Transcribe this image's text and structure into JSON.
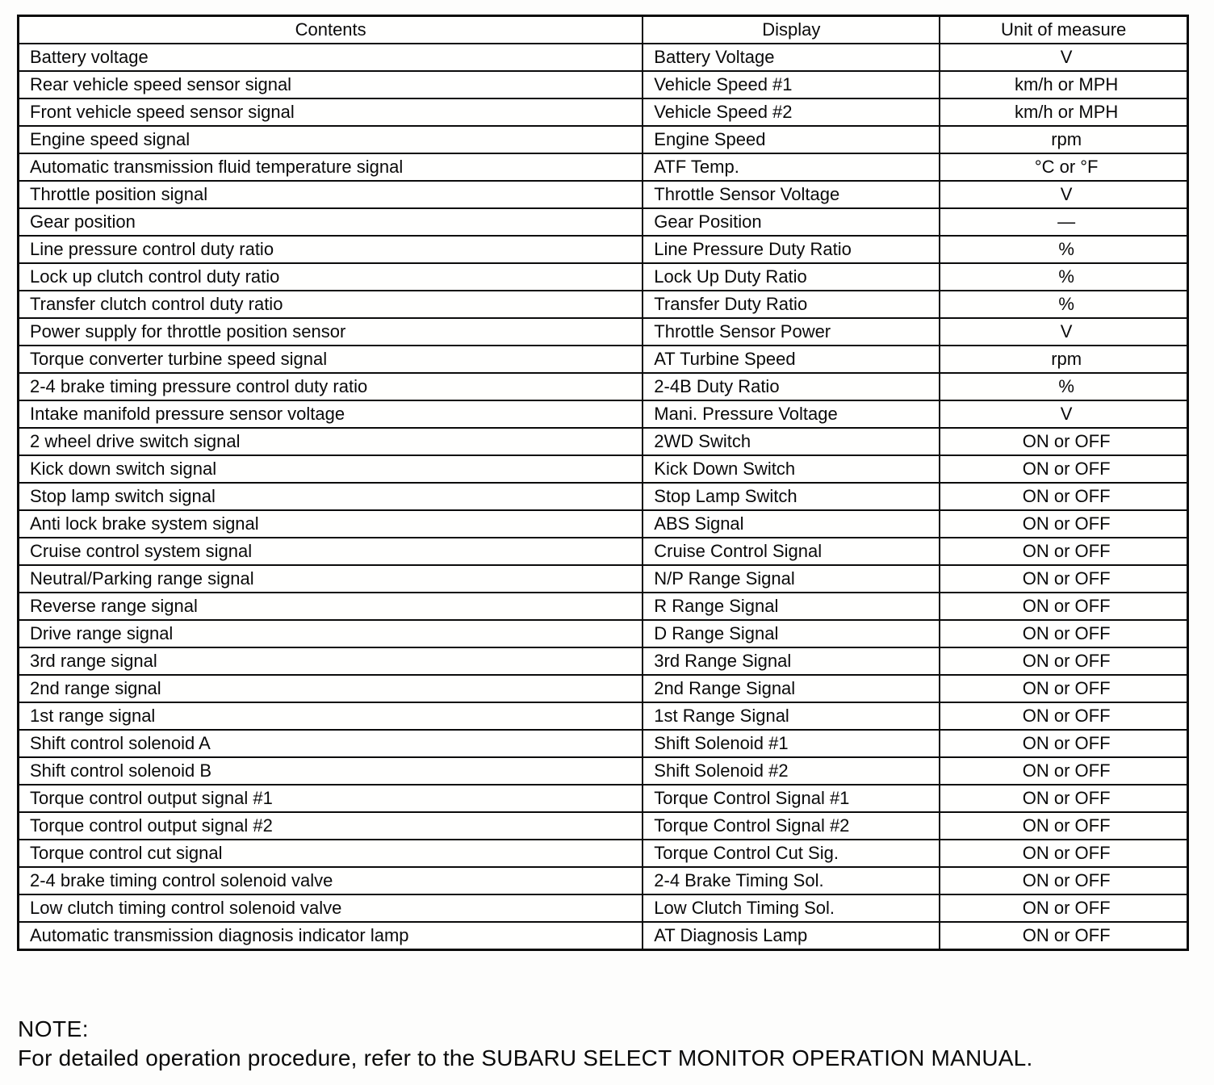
{
  "table": {
    "headers": [
      "Contents",
      "Display",
      "Unit of measure"
    ],
    "rows": [
      {
        "contents": "Battery voltage",
        "display": "Battery Voltage",
        "unit": "V"
      },
      {
        "contents": "Rear vehicle speed sensor signal",
        "display": "Vehicle Speed #1",
        "unit": "km/h or MPH"
      },
      {
        "contents": "Front vehicle speed sensor signal",
        "display": "Vehicle Speed #2",
        "unit": "km/h or MPH"
      },
      {
        "contents": "Engine speed signal",
        "display": "Engine Speed",
        "unit": "rpm"
      },
      {
        "contents": "Automatic transmission fluid temperature signal",
        "display": "ATF Temp.",
        "unit": "°C or °F"
      },
      {
        "contents": "Throttle position signal",
        "display": "Throttle Sensor Voltage",
        "unit": "V"
      },
      {
        "contents": "Gear position",
        "display": "Gear Position",
        "unit": "—"
      },
      {
        "contents": "Line pressure control duty ratio",
        "display": "Line Pressure Duty Ratio",
        "unit": "%"
      },
      {
        "contents": "Lock up clutch control duty ratio",
        "display": "Lock Up Duty Ratio",
        "unit": "%"
      },
      {
        "contents": "Transfer clutch control duty ratio",
        "display": "Transfer Duty Ratio",
        "unit": "%"
      },
      {
        "contents": "Power supply for throttle position sensor",
        "display": "Throttle Sensor Power",
        "unit": "V"
      },
      {
        "contents": "Torque converter turbine speed signal",
        "display": "AT Turbine Speed",
        "unit": "rpm"
      },
      {
        "contents": "2-4 brake timing pressure control duty ratio",
        "display": "2-4B Duty Ratio",
        "unit": "%"
      },
      {
        "contents": "Intake manifold pressure sensor voltage",
        "display": "Mani. Pressure Voltage",
        "unit": "V"
      },
      {
        "contents": "2 wheel drive switch signal",
        "display": "2WD Switch",
        "unit": "ON or OFF"
      },
      {
        "contents": "Kick down switch signal",
        "display": "Kick Down Switch",
        "unit": "ON or OFF"
      },
      {
        "contents": "Stop lamp switch signal",
        "display": "Stop Lamp Switch",
        "unit": "ON or OFF"
      },
      {
        "contents": "Anti lock brake system signal",
        "display": "ABS Signal",
        "unit": "ON or OFF"
      },
      {
        "contents": "Cruise control system signal",
        "display": "Cruise Control Signal",
        "unit": "ON or OFF"
      },
      {
        "contents": "Neutral/Parking range signal",
        "display": "N/P Range Signal",
        "unit": "ON or OFF"
      },
      {
        "contents": "Reverse range signal",
        "display": "R Range Signal",
        "unit": "ON or OFF"
      },
      {
        "contents": "Drive range signal",
        "display": "D Range Signal",
        "unit": "ON or OFF"
      },
      {
        "contents": "3rd range signal",
        "display": "3rd Range Signal",
        "unit": "ON or OFF"
      },
      {
        "contents": "2nd range signal",
        "display": "2nd Range Signal",
        "unit": "ON or OFF"
      },
      {
        "contents": "1st range signal",
        "display": "1st Range Signal",
        "unit": "ON or OFF"
      },
      {
        "contents": "Shift control solenoid A",
        "display": "Shift Solenoid #1",
        "unit": "ON or OFF"
      },
      {
        "contents": "Shift control solenoid B",
        "display": "Shift Solenoid #2",
        "unit": "ON or OFF"
      },
      {
        "contents": "Torque control output signal #1",
        "display": "Torque Control Signal #1",
        "unit": "ON or OFF"
      },
      {
        "contents": "Torque control output signal #2",
        "display": "Torque Control Signal #2",
        "unit": "ON or OFF"
      },
      {
        "contents": "Torque control cut signal",
        "display": "Torque Control Cut Sig.",
        "unit": "ON or OFF"
      },
      {
        "contents": "2-4 brake timing control solenoid valve",
        "display": "2-4 Brake Timing Sol.",
        "unit": "ON or OFF"
      },
      {
        "contents": "Low clutch timing control solenoid valve",
        "display": "Low Clutch Timing Sol.",
        "unit": "ON or OFF"
      },
      {
        "contents": "Automatic transmission diagnosis indicator lamp",
        "display": "AT Diagnosis Lamp",
        "unit": "ON or OFF"
      }
    ]
  },
  "note": {
    "label": "NOTE:",
    "text": "For detailed operation procedure, refer to the SUBARU SELECT MONITOR OPERATION MANUAL."
  },
  "chart_data": {
    "type": "table",
    "title": "",
    "columns": [
      "Contents",
      "Display",
      "Unit of measure"
    ]
  }
}
